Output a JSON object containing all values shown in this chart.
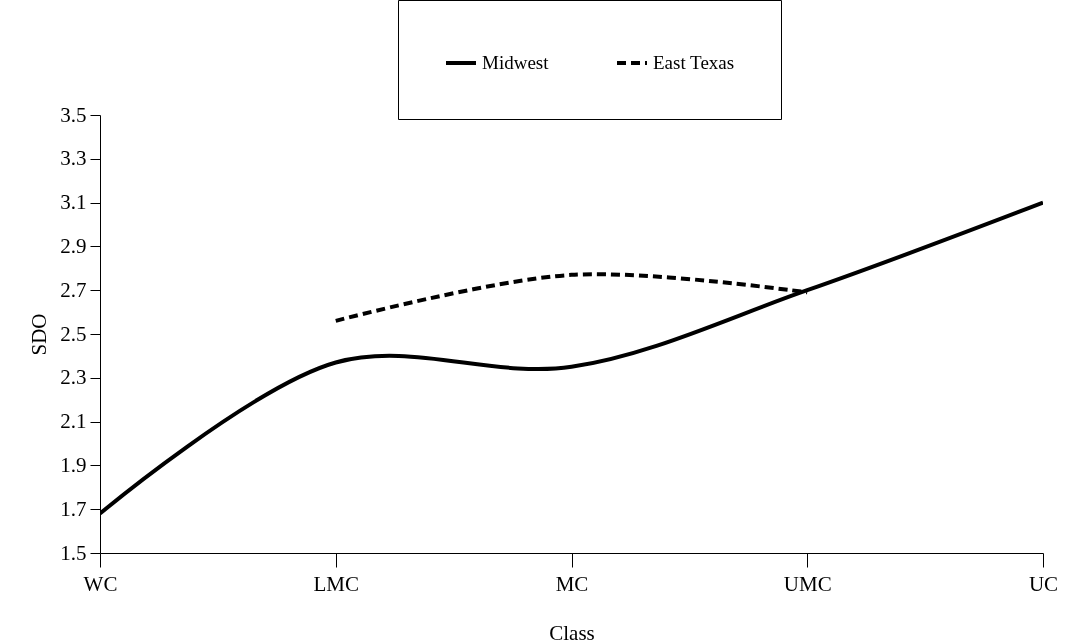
{
  "chart_data": {
    "type": "line",
    "xlabel": "Class",
    "ylabel": "SDO",
    "categories": [
      "WC",
      "LMC",
      "MC",
      "UMC",
      "UC"
    ],
    "ylim": [
      1.5,
      3.5
    ],
    "yticks": [
      1.5,
      1.7,
      1.9,
      2.1,
      2.3,
      2.5,
      2.7,
      2.9,
      3.1,
      3.3,
      3.5
    ],
    "series": [
      {
        "name": "Midwest",
        "color": "#000000",
        "line_style": "solid",
        "values": [
          1.68,
          2.37,
          2.35,
          2.7,
          3.1
        ]
      },
      {
        "name": "East Texas",
        "color": "#000000",
        "line_style": "dashed",
        "values": [
          null,
          2.56,
          2.77,
          2.69,
          null
        ]
      }
    ],
    "grid": false,
    "legend": "top",
    "marker": "none"
  }
}
